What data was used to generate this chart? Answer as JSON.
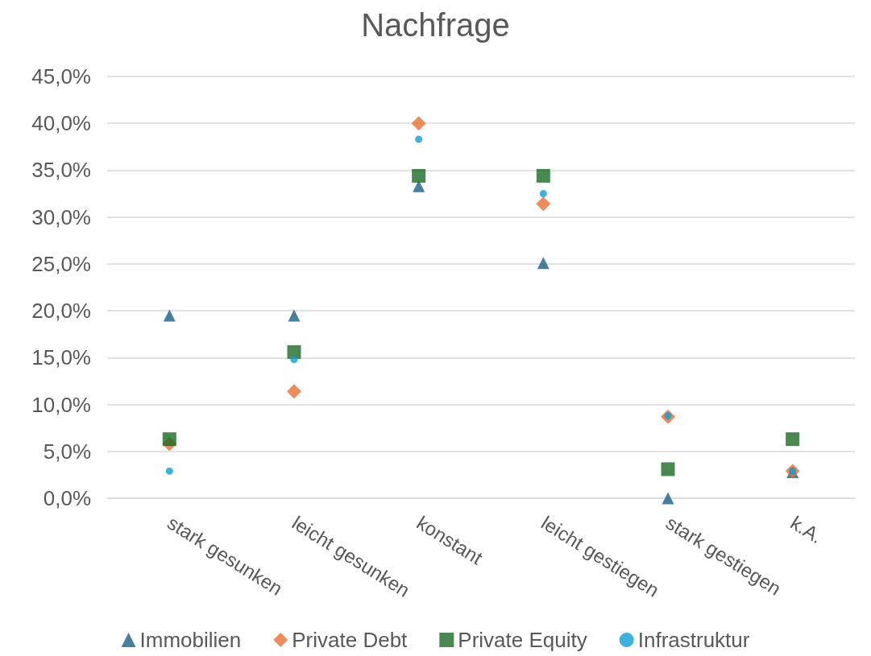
{
  "chart_data": {
    "type": "scatter",
    "title": "Nachfrage",
    "categories": [
      "stark gesunken",
      "leicht gesunken",
      "konstant",
      "leicht gestiegen",
      "stark gestiegen",
      "k.A."
    ],
    "series": [
      {
        "name": "Immobilien",
        "color": "#1b5f86",
        "marker": "triangle",
        "values": [
          19.5,
          19.5,
          33.3,
          25.1,
          0,
          2.8
        ]
      },
      {
        "name": "Private Debt",
        "color": "#e97132",
        "marker": "diamond",
        "values": [
          5.8,
          11.4,
          40.0,
          31.4,
          8.7,
          2.9
        ]
      },
      {
        "name": "Private Equity",
        "color": "#196b24",
        "marker": "square",
        "values": [
          6.3,
          15.6,
          34.4,
          34.4,
          3.1,
          6.3
        ]
      },
      {
        "name": "Infrastruktur",
        "color": "#0f9ed5",
        "marker": "circle",
        "values": [
          2.9,
          14.8,
          38.3,
          32.5,
          8.8,
          2.9
        ]
      }
    ],
    "ylim": [
      0,
      45
    ],
    "yticks": [
      {
        "value": 0,
        "label": "0,0%"
      },
      {
        "value": 5,
        "label": "5,0%"
      },
      {
        "value": 10,
        "label": "10,0%"
      },
      {
        "value": 15,
        "label": "15,0%"
      },
      {
        "value": 20,
        "label": "20,0%"
      },
      {
        "value": 25,
        "label": "25,0%"
      },
      {
        "value": 30,
        "label": "30,0%"
      },
      {
        "value": 35,
        "label": "35,0%"
      },
      {
        "value": 40,
        "label": "40,0%"
      },
      {
        "value": 45,
        "label": "45,0%"
      }
    ],
    "grid": "y",
    "legend": "bottom"
  }
}
